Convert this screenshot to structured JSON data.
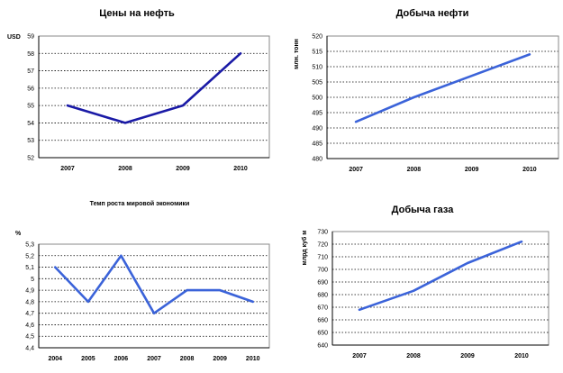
{
  "chart_data": [
    {
      "type": "line",
      "title": "Цены на нефть",
      "ylabel": "USD",
      "xlabel": "",
      "categories": [
        "2007",
        "2008",
        "2009",
        "2010"
      ],
      "series": [
        {
          "values": [
            55,
            54,
            55,
            58
          ],
          "color": "#1a1aa6"
        }
      ],
      "ylim": [
        52,
        59
      ],
      "ystep": 1,
      "yticks": [
        "52",
        "53",
        "54",
        "55",
        "56",
        "57",
        "58",
        "59"
      ],
      "grid": true,
      "legend": "none"
    },
    {
      "type": "line",
      "title": "Добыча нефти",
      "ylabel": "млн. тонн",
      "xlabel": "",
      "categories": [
        "2007",
        "2008",
        "2009",
        "2010"
      ],
      "series": [
        {
          "values": [
            492,
            500,
            507,
            514
          ],
          "color": "#3b63d9"
        }
      ],
      "ylim": [
        480,
        520
      ],
      "ystep": 5,
      "yticks": [
        "480",
        "485",
        "490",
        "495",
        "500",
        "505",
        "510",
        "515",
        "520"
      ],
      "grid": true,
      "legend": "none"
    },
    {
      "type": "line",
      "title": "Темп роста мировой экономики",
      "ylabel": "%",
      "xlabel": "",
      "categories": [
        "2004",
        "2005",
        "2006",
        "2007",
        "2008",
        "2009",
        "2010"
      ],
      "series": [
        {
          "values": [
            5.1,
            4.8,
            5.2,
            4.7,
            4.9,
            4.9,
            4.8
          ],
          "color": "#3b63d9"
        }
      ],
      "ylim": [
        4.4,
        5.3
      ],
      "ystep": 0.1,
      "yticks": [
        "4,4",
        "4,5",
        "4,6",
        "4,7",
        "4,8",
        "4,9",
        "5",
        "5,1",
        "5,2",
        "5,3"
      ],
      "grid": true,
      "legend": "none"
    },
    {
      "type": "line",
      "title": "Добыча газа",
      "ylabel": "млрд куб м",
      "xlabel": "",
      "categories": [
        "2007",
        "2008",
        "2009",
        "2010"
      ],
      "series": [
        {
          "values": [
            668,
            683,
            705,
            722
          ],
          "color": "#3b63d9"
        }
      ],
      "ylim": [
        640,
        730
      ],
      "ystep": 10,
      "yticks": [
        "640",
        "650",
        "660",
        "670",
        "680",
        "690",
        "700",
        "710",
        "720",
        "730"
      ],
      "grid": true,
      "legend": "none"
    }
  ]
}
